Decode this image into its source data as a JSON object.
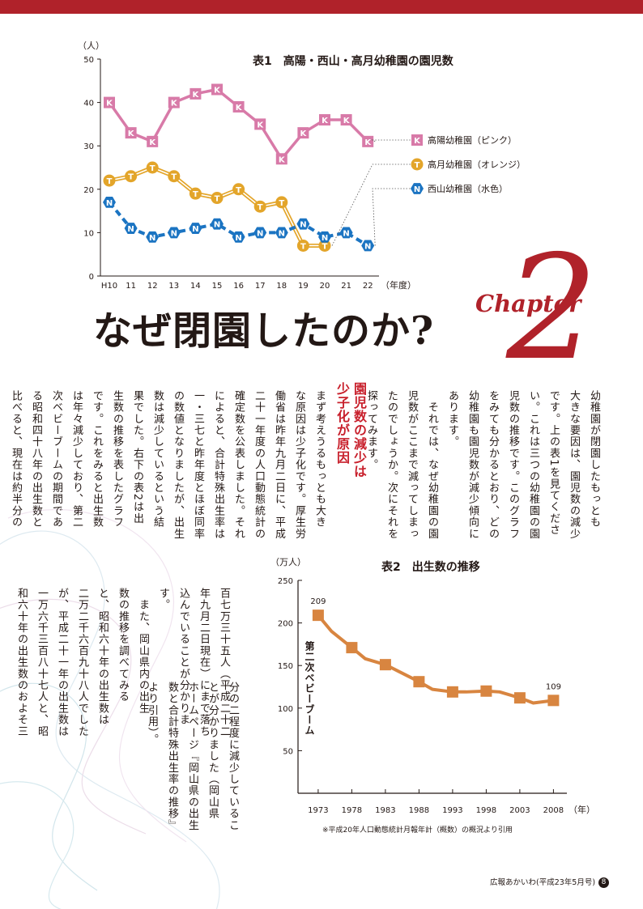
{
  "headline": "なぜ閉園したのか?",
  "chapter": {
    "word": "Chapter",
    "number": "2"
  },
  "section_heading": "園児数の減少は\n少子化が原因",
  "body_columns": [
    "幼稚園が閉園したもっとも\n大きな要因は、園児数の減少\nです。上の表1を見てくださ\nい。これは三つの幼稚園の園\n児数の推移です。このグラフ\nをみても分かるとおり、どの\n幼稚園も園児数が減少傾向に\nあります。\n　それでは、なぜ幼稚園の園\n児数がここまで減ってしまっ\nたのでしょうか。次にそれを\n探ってみます。",
    "まず考えうるもっとも大き\nな原因は少子化です。厚生労\n働省は昨年九月二日に、平成\n二十一年度の人口動態統計の\n確定数を公表しました。それ\nによると、合計特殊出生率は\n一・三七と昨年度とほぼ同率\nの数値となりましたが、出生\n数は減少しているという結\n果でした。右下の表2は出\n生数の推移を表したグラフ\nです。これをみると出生数\nは年々減少しており、第二\n次ベビーブームの期間であ\nる昭和四十八年の出生数と\n比べると、現在は約半分の",
    "百七万三十五人（平成二十二\n年九月二日現在）にまで落ち\n込んでいることが分かりま\nす。\n　また、岡山県内の出生\n数の推移を調べてみる\nと、昭和六十年の出生数は\n二万二千六百九十八人でした\nが、平成二十一年の出生数は\n一万六千三百八十七人と、昭\n和六十年の出生数のおよそ三",
    "分の二程度に減少しているこ\nとが分かりました（岡山県\nホームページ『岡山県の出生\n数と合計特殊出生率の推移』\nより引用）。"
  ],
  "chart1": {
    "title": "表1　高陽・西山・高月幼稚園の園児数",
    "unit_label": "（人）",
    "x_unit_label": "（年度）",
    "chart_data": {
      "type": "line",
      "title": "表1　高陽・西山・高月幼稚園の園児数",
      "categories": [
        "H10",
        "11",
        "12",
        "13",
        "14",
        "15",
        "16",
        "17",
        "18",
        "19",
        "20",
        "21",
        "22"
      ],
      "ylim": [
        0,
        50
      ],
      "yticks": [
        "0",
        "10",
        "20",
        "30",
        "40",
        "50"
      ],
      "series": [
        {
          "name": "高陽幼稚園（ピンク）",
          "marker": "K",
          "color": "#d87aa8",
          "style": "solid",
          "values": [
            40,
            33,
            31,
            40,
            42,
            43,
            39,
            35,
            27,
            33,
            36,
            36,
            31
          ]
        },
        {
          "name": "高月幼稚園（オレンジ）",
          "marker": "T",
          "color": "#e3a52a",
          "style": "double",
          "values": [
            22,
            23,
            25,
            23,
            19,
            18,
            20,
            16,
            17,
            7,
            7,
            null,
            null
          ]
        },
        {
          "name": "西山幼稚園（水色）",
          "marker": "N",
          "color": "#1b74c2",
          "style": "dashed",
          "values": [
            17,
            11,
            9,
            10,
            11,
            12,
            9,
            10,
            10,
            12,
            9,
            10,
            7
          ]
        }
      ]
    }
  },
  "chart2": {
    "title": "表2　出生数の推移",
    "unit_label": "（万人）",
    "x_unit_label": "（年）",
    "annotation": "第二次ベビーブーム",
    "note": "※平成20年人口動態統計月報年計（概数）の概況より引用",
    "chart_data": {
      "type": "line",
      "title": "表2　出生数の推移",
      "x": [
        1973,
        1975,
        1978,
        1980,
        1983,
        1985,
        1988,
        1990,
        1993,
        1995,
        1998,
        2000,
        2003,
        2005,
        2008
      ],
      "xticks": [
        "1973",
        "1978",
        "1983",
        "1988",
        "1993",
        "1998",
        "2003",
        "2008"
      ],
      "ylim": [
        0,
        250
      ],
      "yticks": [
        "50",
        "100",
        "150",
        "200",
        "250"
      ],
      "color": "#d88540",
      "series": [
        {
          "values": [
            209,
            190,
            171,
            158,
            151,
            143,
            131,
            122,
            119,
            119,
            120,
            119,
            112,
            106,
            109
          ]
        }
      ],
      "data_labels": {
        "first": "209",
        "last": "109"
      }
    }
  },
  "footer": {
    "text": "広報あかいわ(平成23年5月号)",
    "page": "8"
  }
}
